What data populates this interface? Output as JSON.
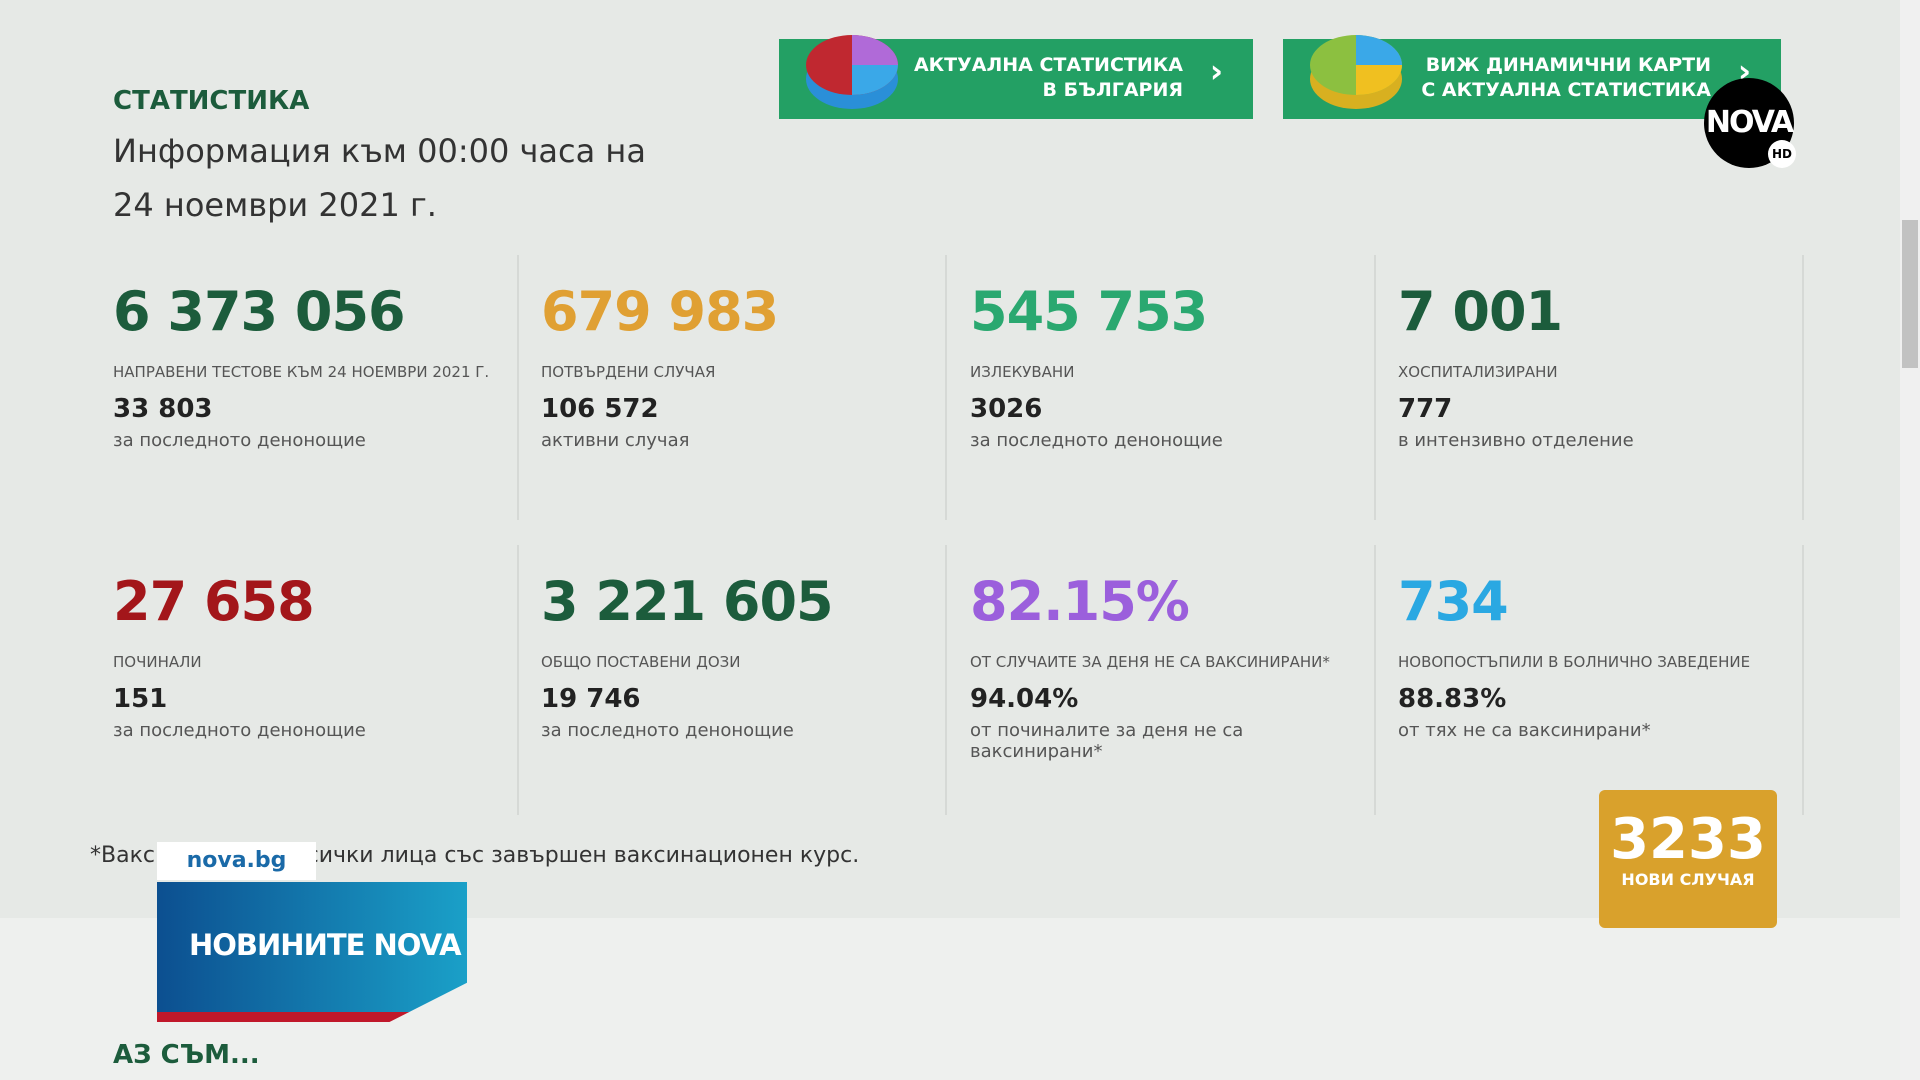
{
  "header": {
    "label": "СТАТИСТИКА",
    "info_lines": [
      "Информация към 00:00 часа на",
      "24 ноември 2021 г."
    ]
  },
  "buttons": [
    {
      "lines": [
        "АКТУАЛНА СТАТИСТИКА",
        "В БЪЛГАРИЯ"
      ]
    },
    {
      "lines": [
        "ВИЖ ДИНАМИЧНИ КАРТИ",
        "С АКТУАЛНА СТАТИСТИКА"
      ]
    }
  ],
  "logo": {
    "text": "NOVA",
    "badge": "HD"
  },
  "stats": [
    {
      "value": "6 373 056",
      "label": "НАПРАВЕНИ ТЕСТОВЕ КЪМ 24 НОЕМВРИ 2021 Г.",
      "sub_value": "33 803",
      "sub_label": "за последното денонощие"
    },
    {
      "value": "679 983",
      "label": "ПОТВЪРДЕНИ СЛУЧАЯ",
      "sub_value": "106 572",
      "sub_label": "активни случая"
    },
    {
      "value": "545 753",
      "label": "ИЗЛЕКУВАНИ",
      "sub_value": "3026",
      "sub_label": "за последното денонощие"
    },
    {
      "value": "7 001",
      "label": "ХОСПИТАЛИЗИРАНИ",
      "sub_value": "777",
      "sub_label": "в интензивно отделение"
    },
    {
      "value": "27 658",
      "label": "ПОЧИНАЛИ",
      "sub_value": "151",
      "sub_label": "за последното денонощие"
    },
    {
      "value": "3 221 605",
      "label": "ОБЩО ПОСТАВЕНИ ДОЗИ",
      "sub_value": "19 746",
      "sub_label": "за последното денонощие"
    },
    {
      "value": "82.15%",
      "label": "ОТ СЛУЧАИТЕ ЗА ДЕНЯ НЕ СА ВАКСИНИРАНИ*",
      "sub_value": "94.04%",
      "sub_label": "от починалите за деня не са ваксинирани*"
    },
    {
      "value": "734",
      "label": "НОВОПОСТЪПИЛИ В БОЛНИЧНО ЗАВЕДЕНИЕ",
      "sub_value": "88.83%",
      "sub_label": "от тях не са ваксинирани*"
    }
  ],
  "footnote": "*Ваксинирани са всички лица със завършен ваксинационен курс.",
  "overlay": {
    "site": "nova.bg",
    "show": "НОВИНИТЕ NOVA",
    "cases": "3233",
    "cases_label": "НОВИ СЛУЧАЯ"
  },
  "section": "АЗ СЪМ..."
}
